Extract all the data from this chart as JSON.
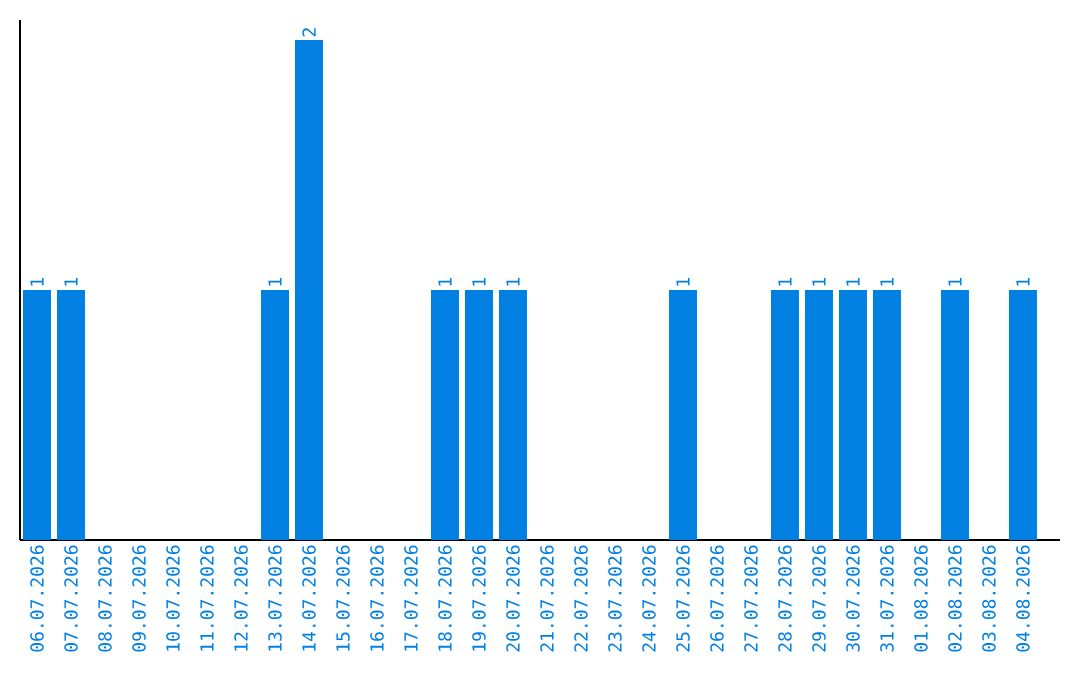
{
  "chart_data": {
    "type": "bar",
    "color": "#0180e2",
    "categories": [
      "06.07.2026",
      "07.07.2026",
      "08.07.2026",
      "09.07.2026",
      "10.07.2026",
      "11.07.2026",
      "12.07.2026",
      "13.07.2026",
      "14.07.2026",
      "15.07.2026",
      "16.07.2026",
      "17.07.2026",
      "18.07.2026",
      "19.07.2026",
      "20.07.2026",
      "21.07.2026",
      "22.07.2026",
      "23.07.2026",
      "24.07.2026",
      "25.07.2026",
      "26.07.2026",
      "27.07.2026",
      "28.07.2026",
      "29.07.2026",
      "30.07.2026",
      "31.07.2026",
      "01.08.2026",
      "02.08.2026",
      "03.08.2026",
      "04.08.2026"
    ],
    "values": [
      1,
      1,
      0,
      0,
      0,
      0,
      0,
      1,
      2,
      0,
      0,
      0,
      1,
      1,
      1,
      0,
      0,
      0,
      0,
      1,
      0,
      0,
      1,
      1,
      1,
      1,
      0,
      1,
      0,
      1
    ],
    "value_labels": [
      "1",
      "1",
      null,
      null,
      null,
      null,
      null,
      "1",
      "2",
      null,
      null,
      null,
      "1",
      "1",
      "1",
      null,
      null,
      null,
      null,
      "1",
      null,
      null,
      "1",
      "1",
      "1",
      "1",
      null,
      "1",
      null,
      "1"
    ],
    "grid": false
  }
}
